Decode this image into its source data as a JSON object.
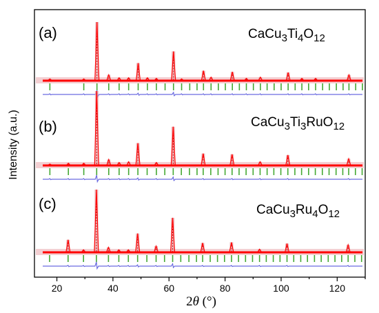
{
  "chart_data": {
    "type": "line",
    "xlabel_parts": [
      "2",
      "θ",
      " (°)"
    ],
    "ylabel": "Intensity (a.u.)",
    "xlim": [
      12,
      130
    ],
    "x_ticks": [
      20,
      40,
      60,
      80,
      100,
      120
    ],
    "panels": [
      {
        "label": "(a)",
        "formula": {
          "parts": [
            [
              "CaCu",
              ""
            ],
            [
              "3",
              "sub"
            ],
            [
              "Ti",
              ""
            ],
            [
              "4",
              "sub"
            ],
            [
              "O",
              ""
            ],
            [
              "12",
              "sub"
            ]
          ]
        },
        "peaks": [
          {
            "x": 17.5,
            "h": 0.03
          },
          {
            "x": 29.6,
            "h": 0.03
          },
          {
            "x": 34.3,
            "h": 1.0
          },
          {
            "x": 38.5,
            "h": 0.1
          },
          {
            "x": 42.2,
            "h": 0.05
          },
          {
            "x": 45.6,
            "h": 0.05
          },
          {
            "x": 49.0,
            "h": 0.3
          },
          {
            "x": 52.3,
            "h": 0.05
          },
          {
            "x": 55.5,
            "h": 0.04
          },
          {
            "x": 61.6,
            "h": 0.5
          },
          {
            "x": 64.5,
            "h": 0.03
          },
          {
            "x": 72.3,
            "h": 0.17
          },
          {
            "x": 75.0,
            "h": 0.06
          },
          {
            "x": 82.6,
            "h": 0.15
          },
          {
            "x": 87.6,
            "h": 0.04
          },
          {
            "x": 92.6,
            "h": 0.06
          },
          {
            "x": 102.5,
            "h": 0.14
          },
          {
            "x": 107.4,
            "h": 0.04
          },
          {
            "x": 112.3,
            "h": 0.04
          },
          {
            "x": 124.2,
            "h": 0.1
          }
        ],
        "reflections": [
          17.5,
          29.6,
          34.3,
          38.5,
          42.2,
          45.6,
          49.0,
          52.3,
          55.5,
          58.6,
          61.6,
          64.5,
          67.4,
          70.0,
          72.3,
          75.0,
          77.6,
          80.1,
          82.6,
          85.1,
          87.6,
          90.1,
          92.6,
          95.0,
          97.5,
          100.0,
          102.5,
          105.0,
          107.4,
          109.8,
          112.3,
          114.8,
          117.2,
          119.7,
          122.1,
          124.2,
          126.6,
          129.0
        ]
      },
      {
        "label": "(b)",
        "formula": {
          "parts": [
            [
              "CaCu",
              ""
            ],
            [
              "3",
              "sub"
            ],
            [
              "Ti",
              ""
            ],
            [
              "3",
              "sub"
            ],
            [
              "RuO",
              ""
            ],
            [
              "12",
              "sub"
            ]
          ]
        },
        "peaks": [
          {
            "x": 17.5,
            "h": 0.02
          },
          {
            "x": 24.1,
            "h": 0.03
          },
          {
            "x": 29.6,
            "h": 0.03
          },
          {
            "x": 34.2,
            "h": 1.0
          },
          {
            "x": 38.5,
            "h": 0.08
          },
          {
            "x": 42.2,
            "h": 0.04
          },
          {
            "x": 45.6,
            "h": 0.05
          },
          {
            "x": 48.9,
            "h": 0.3
          },
          {
            "x": 55.5,
            "h": 0.04
          },
          {
            "x": 61.5,
            "h": 0.52
          },
          {
            "x": 72.2,
            "h": 0.16
          },
          {
            "x": 82.5,
            "h": 0.15
          },
          {
            "x": 92.5,
            "h": 0.05
          },
          {
            "x": 102.4,
            "h": 0.14
          },
          {
            "x": 124.1,
            "h": 0.09
          }
        ],
        "reflections": [
          17.5,
          24.1,
          29.6,
          34.2,
          38.5,
          42.2,
          45.6,
          48.9,
          52.2,
          55.5,
          58.5,
          61.5,
          64.4,
          67.3,
          70.0,
          72.2,
          74.9,
          77.5,
          80.0,
          82.5,
          85.0,
          87.5,
          90.0,
          92.5,
          95.0,
          97.4,
          99.9,
          102.4,
          104.9,
          107.3,
          109.8,
          112.2,
          114.7,
          117.1,
          119.6,
          122.0,
          124.1,
          126.5,
          128.9
        ]
      },
      {
        "label": "(c)",
        "formula": {
          "parts": [
            [
              "CaCu",
              ""
            ],
            [
              "3",
              "sub"
            ],
            [
              "Ru",
              ""
            ],
            [
              "4",
              "sub"
            ],
            [
              "O",
              ""
            ],
            [
              "12",
              "sub"
            ]
          ]
        },
        "peaks": [
          {
            "x": 24.0,
            "h": 0.2
          },
          {
            "x": 29.5,
            "h": 0.04
          },
          {
            "x": 34.1,
            "h": 1.0
          },
          {
            "x": 38.4,
            "h": 0.08
          },
          {
            "x": 42.1,
            "h": 0.04
          },
          {
            "x": 45.5,
            "h": 0.04
          },
          {
            "x": 48.8,
            "h": 0.3
          },
          {
            "x": 55.4,
            "h": 0.1
          },
          {
            "x": 61.3,
            "h": 0.55
          },
          {
            "x": 72.0,
            "h": 0.15
          },
          {
            "x": 82.3,
            "h": 0.16
          },
          {
            "x": 92.3,
            "h": 0.05
          },
          {
            "x": 102.1,
            "h": 0.14
          },
          {
            "x": 123.9,
            "h": 0.12
          }
        ],
        "reflections": [
          17.4,
          24.0,
          29.5,
          34.1,
          38.4,
          42.1,
          45.5,
          48.8,
          52.1,
          55.4,
          58.4,
          61.3,
          64.2,
          67.1,
          69.8,
          72.0,
          74.7,
          77.3,
          79.8,
          82.3,
          84.8,
          87.3,
          89.8,
          92.3,
          94.7,
          97.2,
          99.6,
          102.1,
          104.5,
          107.0,
          109.4,
          111.9,
          114.3,
          116.8,
          119.2,
          121.6,
          123.9,
          126.3,
          128.7
        ]
      }
    ],
    "colors": {
      "observed": "#e8a0a6",
      "calculated": "#ff0000",
      "observed_marker": "#c01818",
      "reflection": "#44a832",
      "difference": "#6a6ae0"
    },
    "grid": false,
    "legend": "none"
  }
}
